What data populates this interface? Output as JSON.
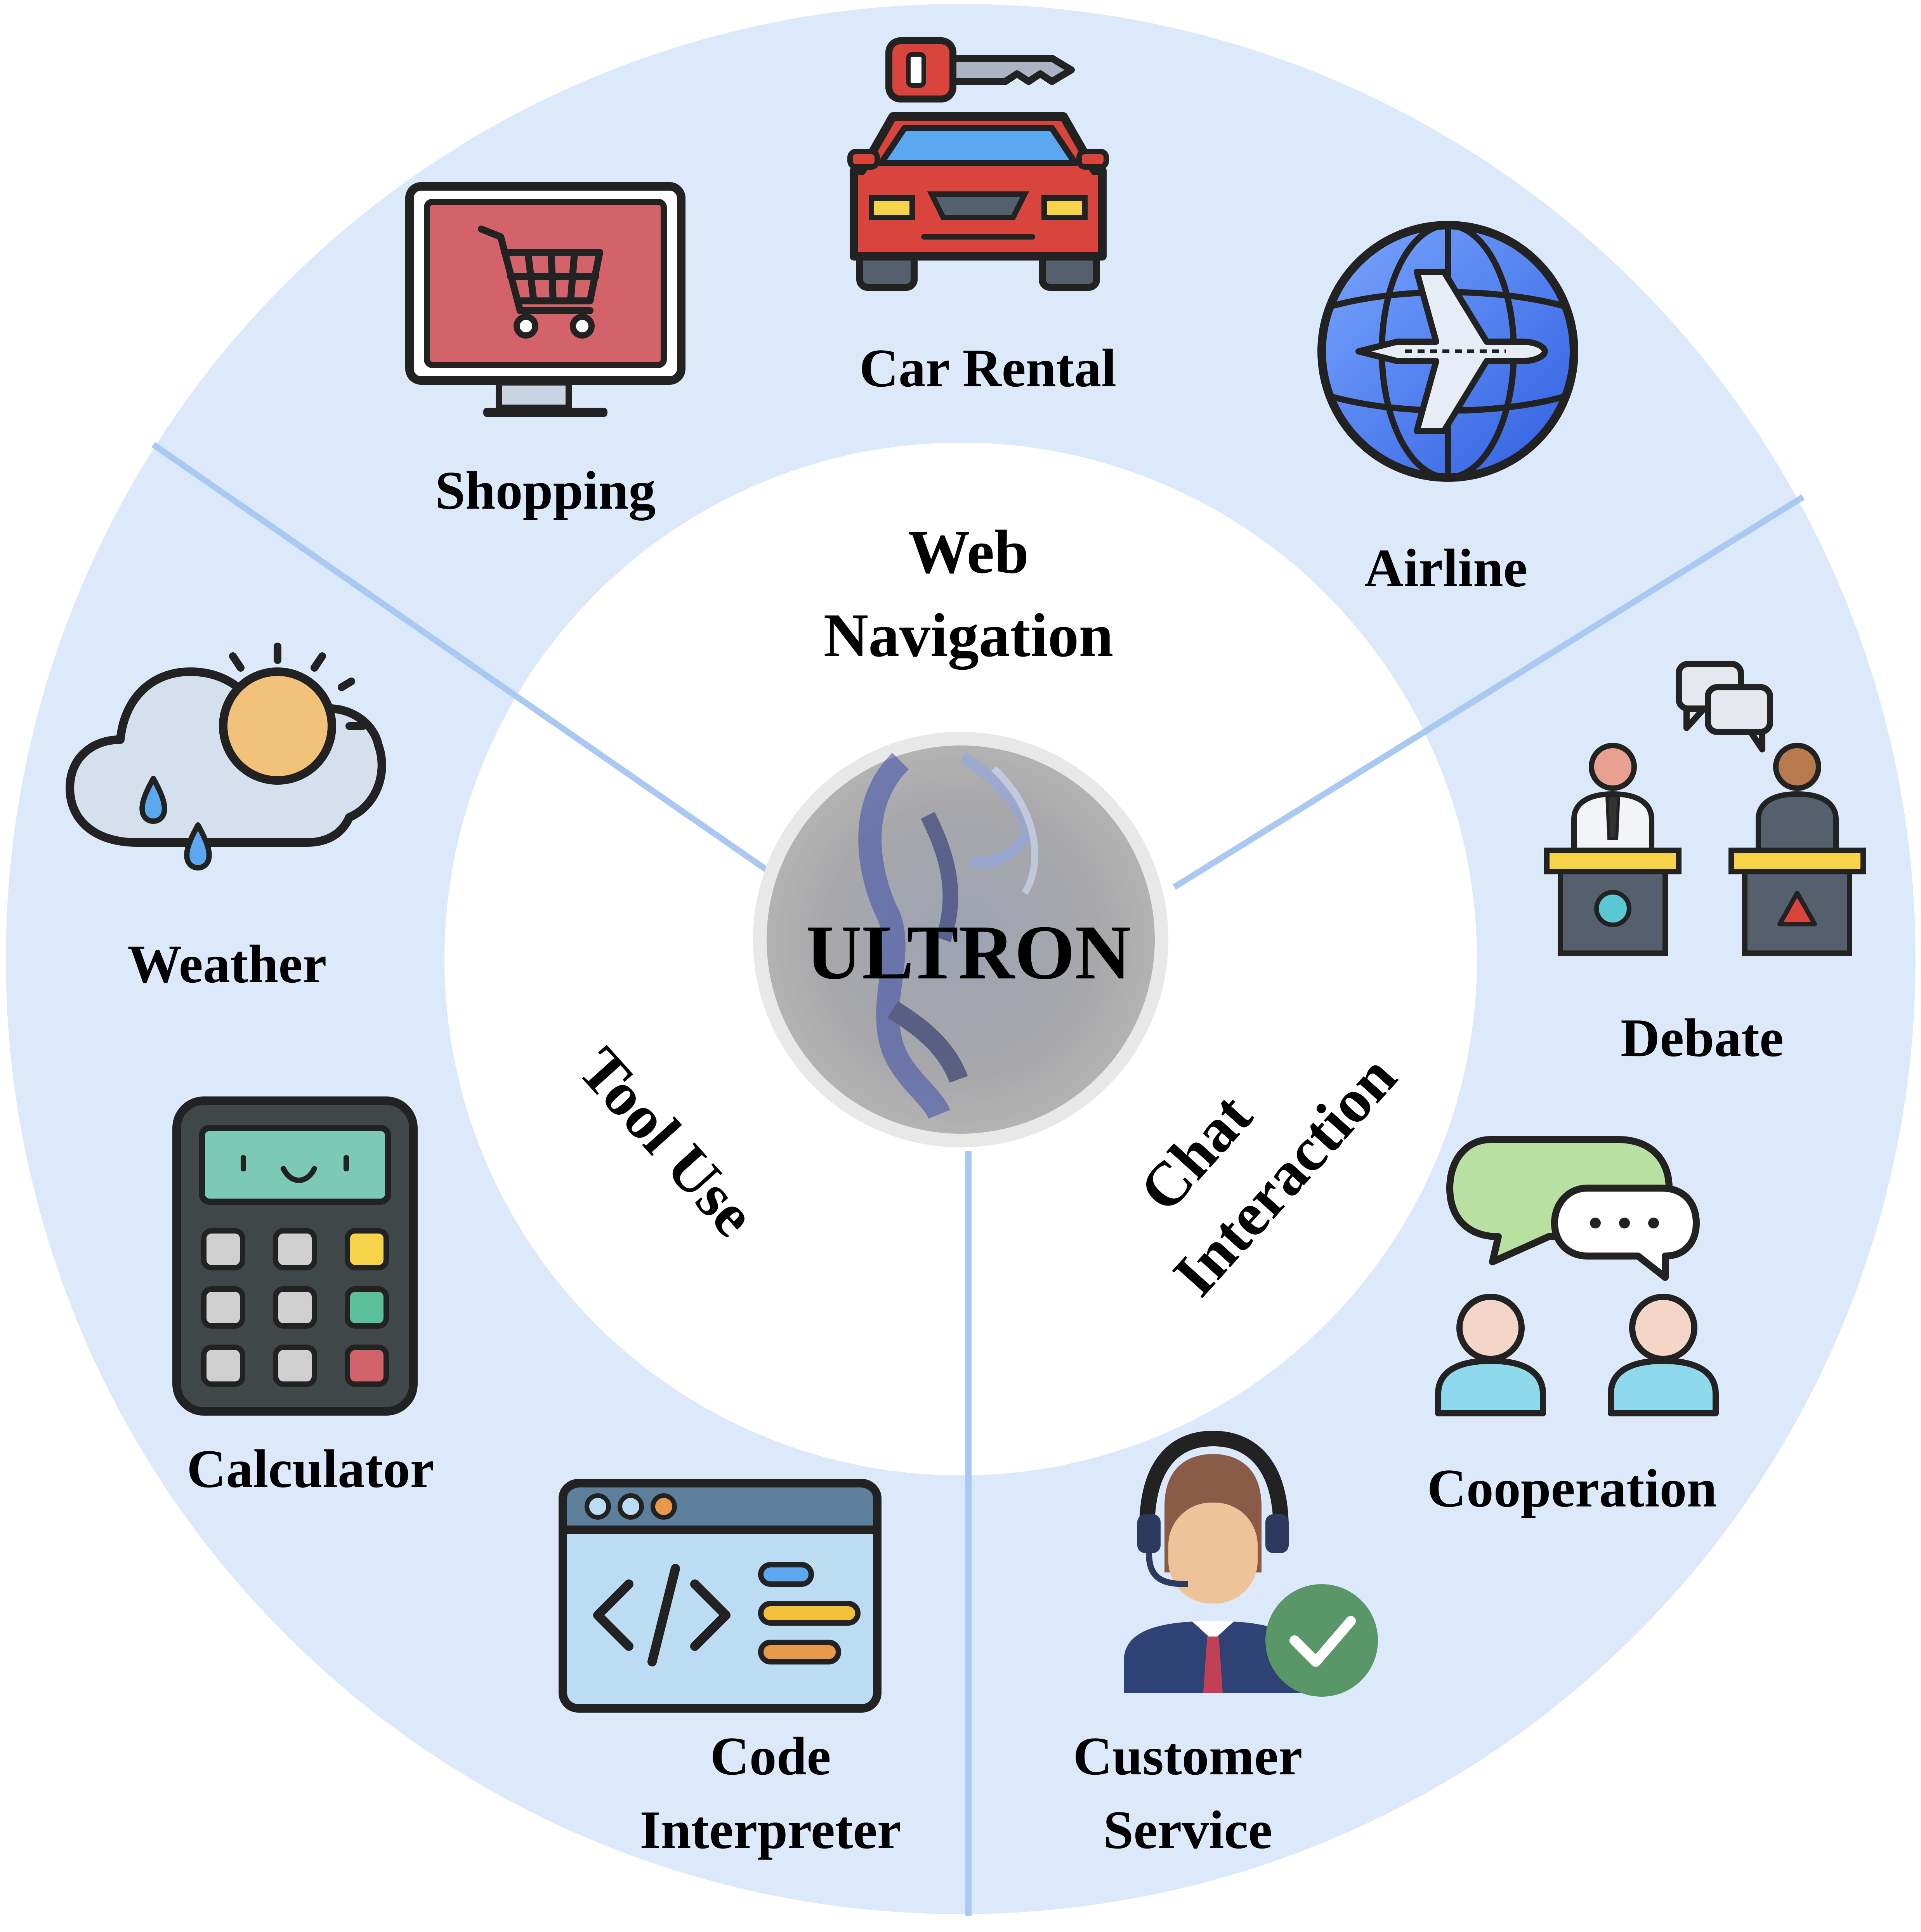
{
  "center": {
    "label": "ULTRON"
  },
  "sections": [
    {
      "title_lines": [
        "Web",
        "Navigation"
      ]
    },
    {
      "title_lines": [
        "Chat",
        "Interaction"
      ]
    },
    {
      "title_lines": [
        "Tool Use"
      ]
    }
  ],
  "items": {
    "shopping": "Shopping",
    "car_rental": "Car Rental",
    "airline": "Airline",
    "debate": "Debate",
    "cooperation": "Cooperation",
    "customer_service": [
      "Customer",
      "Service"
    ],
    "code_interpreter": [
      "Code",
      "Interpreter"
    ],
    "calculator": "Calculator",
    "weather": "Weather"
  },
  "colors": {
    "outer_ring": "#dce9fa",
    "divider": "#a9c8f2",
    "inner_disc": "#ffffff",
    "center_disc": "#a7a7a7",
    "center_glow": "#4d5fb0"
  }
}
